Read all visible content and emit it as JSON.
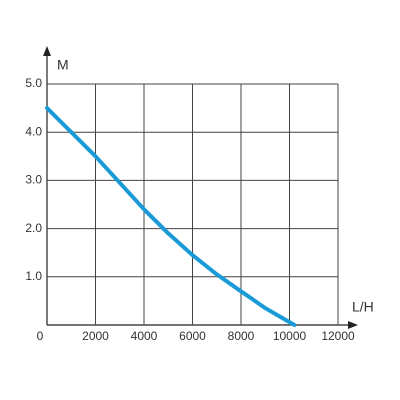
{
  "chart_data": {
    "type": "line",
    "x": [
      0,
      1000,
      2000,
      3000,
      4000,
      5000,
      6000,
      7000,
      8000,
      9000,
      10200
    ],
    "values": [
      4.5,
      4.0,
      3.5,
      2.95,
      2.4,
      1.9,
      1.45,
      1.05,
      0.7,
      0.35,
      0
    ],
    "color": "#1a9ad6",
    "xlabel": "L/H",
    "ylabel": "M",
    "xlim": [
      0,
      12000
    ],
    "ylim": [
      0,
      5
    ],
    "xticks": [
      0,
      2000,
      4000,
      6000,
      8000,
      10000,
      12000
    ],
    "yticks": [
      {
        "value": 1,
        "label": "1.0"
      },
      {
        "value": 2,
        "label": "2.0"
      },
      {
        "value": 3,
        "label": "3.0"
      },
      {
        "value": 4,
        "label": "4.0"
      },
      {
        "value": 5,
        "label": "5.0"
      }
    ],
    "grid": true
  }
}
